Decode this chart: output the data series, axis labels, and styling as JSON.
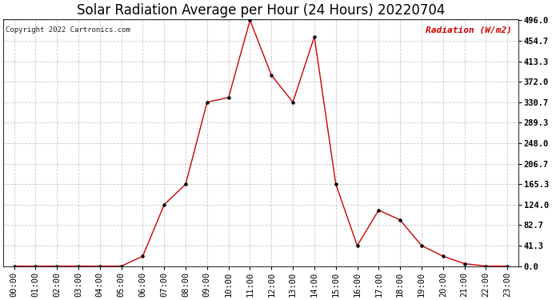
{
  "title": "Solar Radiation Average per Hour (24 Hours) 20220704",
  "copyright_text": "Copyright 2022 Cartronics.com",
  "ylabel": "Radiation (W/m2)",
  "hours": [
    "00:00",
    "01:00",
    "02:00",
    "03:00",
    "04:00",
    "05:00",
    "06:00",
    "07:00",
    "08:00",
    "09:00",
    "10:00",
    "11:00",
    "12:00",
    "13:00",
    "14:00",
    "15:00",
    "16:00",
    "17:00",
    "18:00",
    "19:00",
    "20:00",
    "21:00",
    "22:00",
    "23:00"
  ],
  "values": [
    0.0,
    0.0,
    0.0,
    0.0,
    0.0,
    0.0,
    20.0,
    124.0,
    165.3,
    330.7,
    340.0,
    496.0,
    385.0,
    330.7,
    462.7,
    165.3,
    41.3,
    113.0,
    93.0,
    41.3,
    20.0,
    5.0,
    0.0,
    0.0
  ],
  "line_color": "#cc0000",
  "marker_color": "#000000",
  "bg_color": "#ffffff",
  "grid_color": "#bbbbbb",
  "title_fontsize": 12,
  "label_fontsize": 8,
  "tick_fontsize": 7.5,
  "ymin": 0.0,
  "ymax": 496.0,
  "yticks": [
    0.0,
    41.3,
    82.7,
    124.0,
    165.3,
    206.7,
    248.0,
    289.3,
    330.7,
    372.0,
    413.3,
    454.7,
    496.0
  ]
}
